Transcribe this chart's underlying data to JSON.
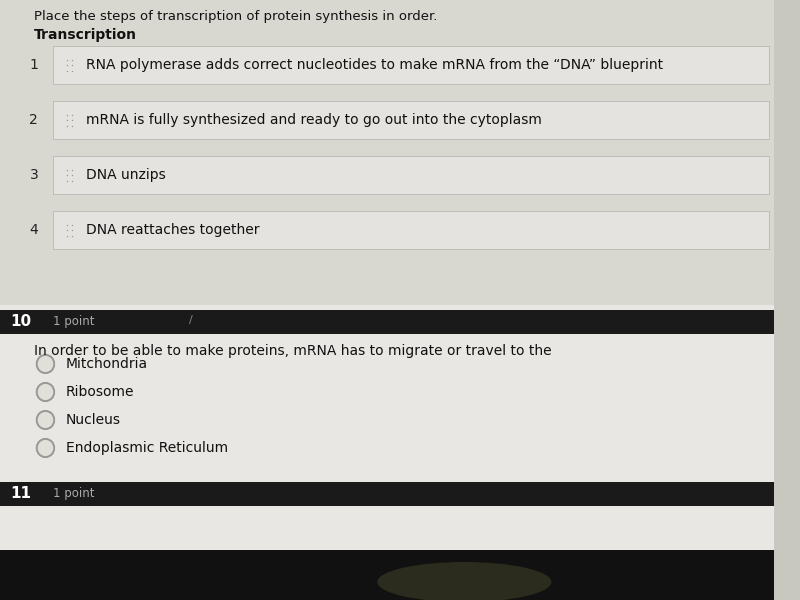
{
  "bg_color": "#c8c7c0",
  "top_section_bg": "#d8d7d0",
  "row_bg": "#e4e3df",
  "row_border": "#b8b7b2",
  "bottom_section_bg": "#e8e7e3",
  "dark_bar_color": "#1a1a1a",
  "header_text": "Place the steps of transcription of protein synthesis in order.",
  "section_label": "Transcription",
  "rows": [
    {
      "num": "1",
      "text": "RNA polymerase adds correct nucleotides to make mRNA from the “DNA” blueprint"
    },
    {
      "num": "2",
      "text": "mRNA is fully synthesized and ready to go out into the cytoplasm"
    },
    {
      "num": "3",
      "text": "DNA unzips"
    },
    {
      "num": "4",
      "text": "DNA reattaches together"
    }
  ],
  "q10_number": "10",
  "q10_points": "1 point",
  "q10_text": "In order to be able to make proteins, mRNA has to migrate or travel to the",
  "q10_options": [
    "Mitchondria",
    "Ribosome",
    "Nucleus",
    "Endoplasmic Reticulum"
  ],
  "q11_number": "11",
  "q11_points": "1 point",
  "header_fontsize": 9.5,
  "section_fontsize": 10,
  "row_fontsize": 10,
  "q_fontsize": 10,
  "option_fontsize": 10,
  "number_color": "#222222",
  "text_color": "#111111",
  "light_text_color": "#888888",
  "dot_color": "#999999",
  "radio_color": "#999999"
}
